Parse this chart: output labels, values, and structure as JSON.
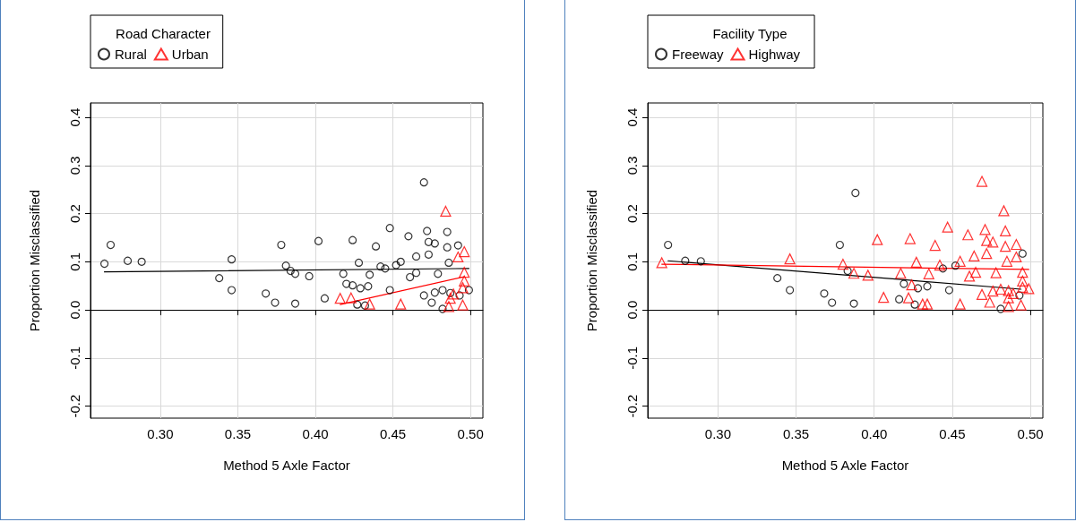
{
  "chart_data": [
    {
      "type": "scatter",
      "xlabel": "Method 5 Axle Factor",
      "ylabel": "Proportion Misclassified",
      "legend_title": "Road Character",
      "legend": "top left",
      "grid": true,
      "xlim": [
        0.255,
        0.508
      ],
      "xticks": [
        {
          "value": 0.3,
          "label": "0.30"
        },
        {
          "value": 0.35,
          "label": "0.35"
        },
        {
          "value": 0.4,
          "label": "0.40"
        },
        {
          "value": 0.45,
          "label": "0.45"
        },
        {
          "value": 0.5,
          "label": "0.50"
        }
      ],
      "ylim": [
        -0.225,
        0.43
      ],
      "yticks": [
        -0.2,
        -0.1,
        {
          "value": 0,
          "label": "0.0"
        },
        0.1,
        0.2,
        0.3,
        0.4
      ],
      "series": [
        {
          "name": "Rural",
          "color": "#000000",
          "marker": "circle",
          "x": [
            0.268,
            0.264,
            0.279,
            0.288,
            0.338,
            0.346,
            0.346,
            0.368,
            0.374,
            0.378,
            0.381,
            0.384,
            0.387,
            0.387,
            0.396,
            0.402,
            0.406,
            0.418,
            0.42,
            0.424,
            0.424,
            0.428,
            0.429,
            0.427,
            0.432,
            0.434,
            0.435,
            0.439,
            0.442,
            0.445,
            0.448,
            0.448,
            0.452,
            0.455,
            0.46,
            0.461,
            0.465,
            0.465,
            0.47,
            0.47,
            0.472,
            0.473,
            0.473,
            0.475,
            0.477,
            0.477,
            0.479,
            0.482,
            0.482,
            0.485,
            0.485,
            0.486,
            0.487,
            0.492,
            0.493,
            0.499
          ],
          "values": [
            0.135,
            0.096,
            0.102,
            0.1,
            0.066,
            0.105,
            0.041,
            0.034,
            0.015,
            0.135,
            0.092,
            0.081,
            0.075,
            0.013,
            0.07,
            0.143,
            0.024,
            0.075,
            0.054,
            0.145,
            0.051,
            0.098,
            0.045,
            0.011,
            0.009,
            0.049,
            0.073,
            0.132,
            0.09,
            0.086,
            0.17,
            0.041,
            0.093,
            0.1,
            0.153,
            0.068,
            0.111,
            0.077,
            0.265,
            0.03,
            0.164,
            0.141,
            0.115,
            0.015,
            0.138,
            0.036,
            0.075,
            0.041,
            0.002,
            0.162,
            0.13,
            0.098,
            0.035,
            0.134,
            0.03,
            0.041
          ]
        },
        {
          "name": "Urban",
          "color": "#ff0000",
          "marker": "triangle",
          "x": [
            0.416,
            0.423,
            0.435,
            0.455,
            0.484,
            0.496,
            0.492,
            0.496,
            0.496,
            0.495,
            0.489,
            0.487,
            0.486,
            0.495
          ],
          "values": [
            0.024,
            0.025,
            0.012,
            0.012,
            0.205,
            0.121,
            0.11,
            0.078,
            0.06,
            0.046,
            0.033,
            0.024,
            0.007,
            0.01
          ]
        },
        {
          "type": "line",
          "color": "#000000",
          "x": [
            0.264,
            0.499
          ],
          "values": [
            0.079,
            0.086
          ]
        },
        {
          "type": "line",
          "color": "#ff0000",
          "x": [
            0.416,
            0.496
          ],
          "values": [
            0.011,
            0.069
          ]
        }
      ]
    },
    {
      "type": "scatter",
      "xlabel": "Method 5 Axle Factor",
      "ylabel": "Proportion Misclassified",
      "legend_title": "Facility Type",
      "legend": "top left",
      "grid": true,
      "xlim": [
        0.255,
        0.508
      ],
      "xticks": [
        {
          "value": 0.3,
          "label": "0.30"
        },
        {
          "value": 0.35,
          "label": "0.35"
        },
        {
          "value": 0.4,
          "label": "0.40"
        },
        {
          "value": 0.45,
          "label": "0.45"
        },
        {
          "value": 0.5,
          "label": "0.50"
        }
      ],
      "ylim": [
        -0.225,
        0.43
      ],
      "yticks": [
        -0.2,
        -0.1,
        {
          "value": 0,
          "label": "0.0"
        },
        0.1,
        0.2,
        0.3,
        0.4
      ],
      "series": [
        {
          "name": "Freeway",
          "color": "#000000",
          "marker": "circle",
          "x": [
            0.268,
            0.279,
            0.289,
            0.338,
            0.346,
            0.368,
            0.373,
            0.378,
            0.383,
            0.387,
            0.388,
            0.419,
            0.416,
            0.426,
            0.428,
            0.434,
            0.444,
            0.448,
            0.452,
            0.481,
            0.493,
            0.495
          ],
          "values": [
            0.135,
            0.102,
            0.101,
            0.066,
            0.041,
            0.034,
            0.015,
            0.135,
            0.081,
            0.013,
            0.243,
            0.054,
            0.022,
            0.011,
            0.045,
            0.049,
            0.086,
            0.041,
            0.092,
            0.002,
            0.03,
            0.117
          ]
        },
        {
          "name": "Highway",
          "color": "#ff0000",
          "marker": "triangle",
          "x": [
            0.264,
            0.346,
            0.38,
            0.387,
            0.396,
            0.402,
            0.406,
            0.417,
            0.423,
            0.424,
            0.422,
            0.427,
            0.431,
            0.434,
            0.435,
            0.439,
            0.442,
            0.447,
            0.455,
            0.455,
            0.46,
            0.461,
            0.464,
            0.465,
            0.469,
            0.471,
            0.472,
            0.472,
            0.476,
            0.469,
            0.474,
            0.476,
            0.478,
            0.481,
            0.483,
            0.484,
            0.484,
            0.485,
            0.486,
            0.486,
            0.486,
            0.489,
            0.491,
            0.491,
            0.494,
            0.495,
            0.495,
            0.495,
            0.499
          ],
          "values": [
            0.098,
            0.106,
            0.095,
            0.076,
            0.072,
            0.146,
            0.026,
            0.076,
            0.148,
            0.052,
            0.025,
            0.099,
            0.012,
            0.012,
            0.075,
            0.134,
            0.093,
            0.172,
            0.101,
            0.012,
            0.156,
            0.07,
            0.112,
            0.078,
            0.267,
            0.167,
            0.117,
            0.144,
            0.141,
            0.032,
            0.016,
            0.039,
            0.077,
            0.043,
            0.206,
            0.164,
            0.132,
            0.101,
            0.007,
            0.04,
            0.025,
            0.034,
            0.136,
            0.11,
            0.01,
            0.078,
            0.06,
            0.047,
            0.044
          ]
        },
        {
          "type": "line",
          "color": "#000000",
          "x": [
            0.268,
            0.494
          ],
          "values": [
            0.102,
            0.043
          ]
        },
        {
          "type": "line",
          "color": "#ff0000",
          "x": [
            0.264,
            0.499
          ],
          "values": [
            0.095,
            0.084
          ]
        }
      ]
    }
  ]
}
